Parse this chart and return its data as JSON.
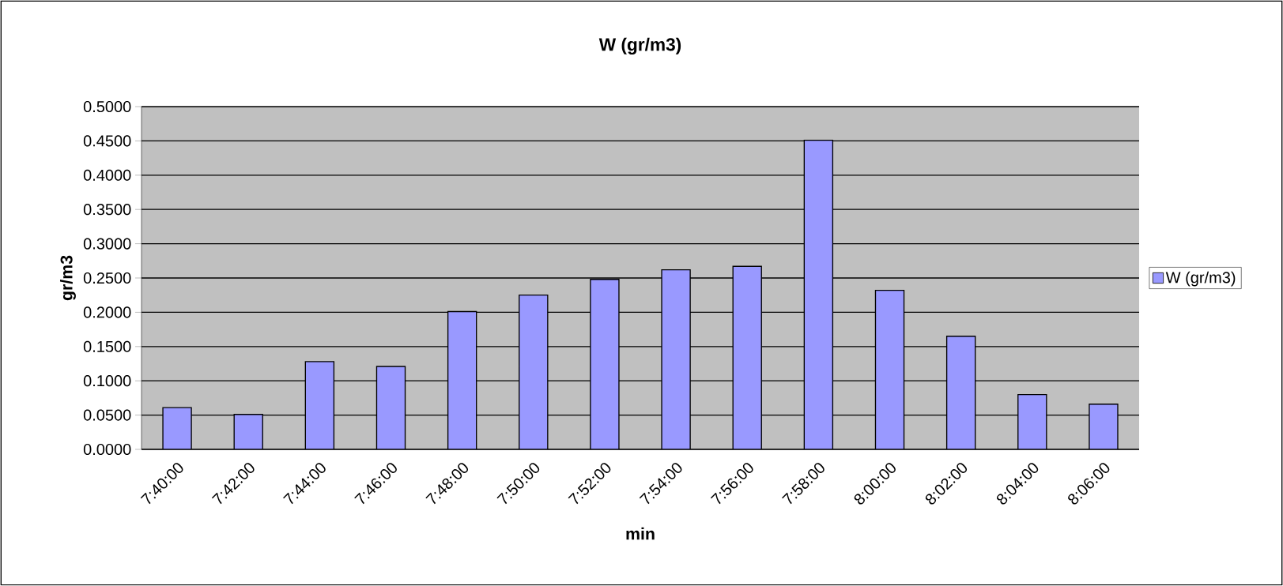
{
  "chart_data": {
    "type": "bar",
    "title": "W (gr/m3)",
    "xlabel": "min",
    "ylabel": "gr/m3",
    "categories": [
      "7:40:00",
      "7:42:00",
      "7:44:00",
      "7:46:00",
      "7:48:00",
      "7:50:00",
      "7:52:00",
      "7:54:00",
      "7:56:00",
      "7:58:00",
      "8:00:00",
      "8:02:00",
      "8:04:00",
      "8:06:00"
    ],
    "series": [
      {
        "name": "W  (gr/m3)",
        "color": "#9999ff",
        "values": [
          0.061,
          0.051,
          0.128,
          0.121,
          0.201,
          0.225,
          0.248,
          0.262,
          0.267,
          0.451,
          0.232,
          0.165,
          0.08,
          0.066
        ]
      }
    ],
    "ylim": [
      0,
      0.5
    ],
    "yticks": [
      {
        "value": 0,
        "label": "0.0000"
      },
      {
        "value": 0.05,
        "label": "0.0500"
      },
      {
        "value": 0.1,
        "label": "0.1000"
      },
      {
        "value": 0.15,
        "label": "0.1500"
      },
      {
        "value": 0.2,
        "label": "0.2000"
      },
      {
        "value": 0.25,
        "label": "0.2500"
      },
      {
        "value": 0.3,
        "label": "0.3000"
      },
      {
        "value": 0.35,
        "label": "0.3500"
      },
      {
        "value": 0.4,
        "label": "0.4000"
      },
      {
        "value": 0.45,
        "label": "0.4500"
      },
      {
        "value": 0.5,
        "label": "0.5000"
      }
    ],
    "grid": "y",
    "legend": "right"
  }
}
